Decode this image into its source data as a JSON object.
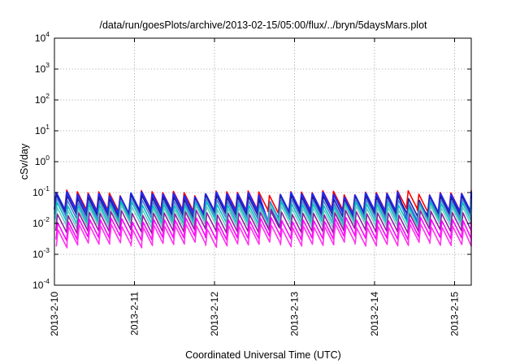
{
  "chart_data": {
    "type": "line",
    "title": "/data/run/goesPlots/archive/2013-02-15/05:00/flux/../bryn/5daysMars.plot",
    "xlabel": "Coordinated Universal Time (UTC)",
    "ylabel": "cSv/day",
    "x_range": [
      "2013-02-10T00:00",
      "2013-02-15T05:00"
    ],
    "ylim": [
      0.0001,
      10000
    ],
    "y_scale": "log",
    "grid": true,
    "legend": "none",
    "x_ticks": [
      "2013-2-10",
      "2013-2-11",
      "2013-2-12",
      "2013-2-13",
      "2013-2-14",
      "2013-2-15"
    ],
    "y_ticks": [
      {
        "base": "10",
        "exp": "-4"
      },
      {
        "base": "10",
        "exp": "-3"
      },
      {
        "base": "10",
        "exp": "-2"
      },
      {
        "base": "10",
        "exp": "-1"
      },
      {
        "base": "10",
        "exp": "0"
      },
      {
        "base": "10",
        "exp": "1"
      },
      {
        "base": "10",
        "exp": "2"
      },
      {
        "base": "10",
        "exp": "3"
      },
      {
        "base": "10",
        "exp": "4"
      }
    ],
    "pattern": {
      "cycle_hours": 3.2,
      "segments": [
        {
          "at": 0.0,
          "factor": 0.3
        },
        {
          "at": 0.15,
          "factor": 1.0
        },
        {
          "at": 1.0,
          "factor": 0.26
        }
      ]
    },
    "series": [
      {
        "peak": 0.1,
        "color": "#ff0000",
        "drop_days": []
      },
      {
        "peak": 0.088,
        "color": "#1e2bff",
        "drop_days": [
          2.7,
          4.45
        ]
      },
      {
        "peak": 0.07,
        "color": "#1c1c9a",
        "drop_days": [
          2.7
        ]
      },
      {
        "peak": 0.055,
        "color": "#4a7bd6",
        "drop_days": []
      },
      {
        "peak": 0.042,
        "color": "#00c0c0",
        "drop_days": []
      },
      {
        "peak": 0.032,
        "color": "#6fc7c2",
        "drop_days": []
      },
      {
        "peak": 0.022,
        "color": "#9020a0",
        "drop_days": []
      },
      {
        "peak": 0.013,
        "color": "#ff00ff",
        "drop_days": []
      },
      {
        "peak": 0.008,
        "color": "#ff33ee",
        "drop_days": []
      }
    ]
  }
}
